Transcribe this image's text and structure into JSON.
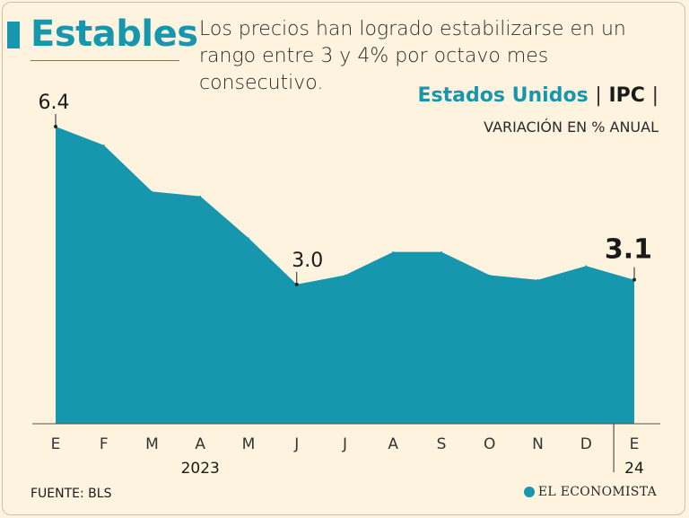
{
  "header": {
    "headline": "Estables",
    "subtitle": "Los precios han logrado estabilizarse en un rango entre 3 y 4% por octavo mes consecutivo.",
    "series_country": "Estados Unidos",
    "series_index": "IPC",
    "separator": "|",
    "unit": "VARIACIÓN EN % ANUAL"
  },
  "footer": {
    "source": "FUENTE: BLS",
    "logo_text": "EL ECONOMISTA"
  },
  "colors": {
    "area": "#1697ad",
    "accent": "#1697ad",
    "background": "#fdf3de",
    "text": "#1a1a1a"
  },
  "chart_data": {
    "type": "area",
    "categories": [
      "E",
      "F",
      "M",
      "A",
      "M",
      "J",
      "J",
      "A",
      "S",
      "O",
      "N",
      "D",
      "E"
    ],
    "year_labels": [
      {
        "label": "2023",
        "category_index": 3
      },
      {
        "label": "24",
        "category_index": 12
      }
    ],
    "series": [
      {
        "values": [
          6.4,
          6.0,
          5.0,
          4.9,
          4.0,
          3.0,
          3.2,
          3.7,
          3.7,
          3.2,
          3.1,
          3.4,
          3.1
        ]
      }
    ],
    "annotations": [
      {
        "index": 0,
        "text": "6.4",
        "emphasis": false
      },
      {
        "index": 5,
        "text": "3.0",
        "emphasis": false
      },
      {
        "index": 12,
        "text": "3.1",
        "emphasis": true
      }
    ],
    "ylim": [
      0,
      6.4
    ],
    "grid": false,
    "legend": "none"
  }
}
